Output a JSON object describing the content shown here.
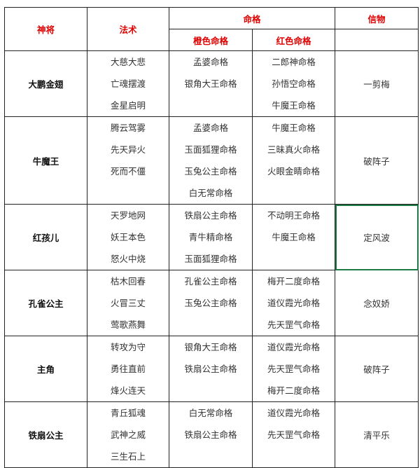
{
  "header": {
    "shenjiang": "神将",
    "fashu": "法术",
    "mingge": "命格",
    "orange": "橙色命格",
    "red": "红色命格",
    "xinwu": "信物"
  },
  "rows": [
    {
      "name": "大鹏金翅",
      "spells": [
        "大慈大悲",
        "亡魂摆渡",
        "金星启明"
      ],
      "orange": [
        "孟婆命格",
        "银角大王命格"
      ],
      "red": [
        "二郎神命格",
        "孙悟空命格",
        "牛魔王命格"
      ],
      "token": "一剪梅"
    },
    {
      "name": "牛魔王",
      "spells": [
        "腾云驾雾",
        "先天异火",
        "死而不僵"
      ],
      "orange": [
        "孟婆命格",
        "玉面狐狸命格",
        "玉兔公主命格",
        "白无常命格"
      ],
      "red": [
        "牛魔王命格",
        "三昧真火命格",
        "火眼金睛命格"
      ],
      "token": "破阵子"
    },
    {
      "name": "红孩儿",
      "spells": [
        "天罗地网",
        "妖王本色",
        "怒火中烧"
      ],
      "orange": [
        "铁扇公主命格",
        "青牛精命格",
        "玉面狐狸命格"
      ],
      "red": [
        "不动明王命格",
        "牛魔王命格"
      ],
      "token": "定风波"
    },
    {
      "name": "孔雀公主",
      "spells": [
        "枯木回春",
        "火冒三丈",
        "莺歌燕舞"
      ],
      "orange": [
        "孔雀公主命格",
        "玉兔公主命格"
      ],
      "red": [
        "梅开二度命格",
        "道仪霞光命格",
        "先天罡气命格"
      ],
      "token": "念奴娇"
    },
    {
      "name": "主角",
      "spells": [
        "转攻为守",
        "勇往直前",
        "烽火连天"
      ],
      "orange": [
        "银角大王命格",
        "铁扇公主命格"
      ],
      "red": [
        "道仪霞光命格",
        "先天罡气命格",
        "梅开二度命格"
      ],
      "token": "破阵子"
    },
    {
      "name": "铁扇公主",
      "spells": [
        "青丘狐魂",
        "武神之威",
        "三生石上"
      ],
      "orange": [
        "白无常命格",
        "铁扇公主命格"
      ],
      "red": [
        "道仪霞光命格",
        "先天罡气命格"
      ],
      "token": "清平乐"
    }
  ],
  "colors": {
    "header_text": "#e00000",
    "selection": "#1e7a45"
  }
}
